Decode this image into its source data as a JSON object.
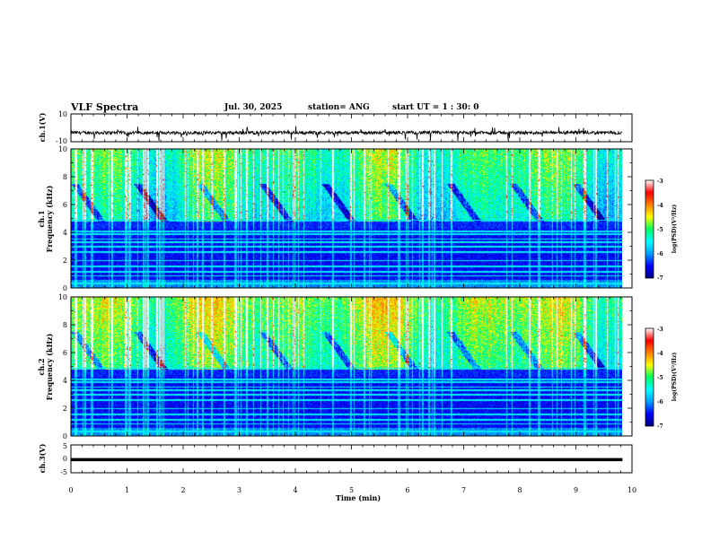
{
  "header": {
    "title": "VLF Spectra",
    "date": "Jul. 30, 2025",
    "station": "station= ANG",
    "start_ut": "start  UT =   1 : 30: 0"
  },
  "chart_data": [
    {
      "type": "line",
      "name": "ch.1(V) waveform",
      "ylabel": "ch.1(V)",
      "xlim": [
        0,
        10
      ],
      "ylim": [
        -10,
        10
      ],
      "yticks": [
        "10",
        "-10"
      ],
      "baseline": -3.5,
      "noise_amplitude": 1.2
    },
    {
      "type": "heatmap",
      "name": "ch.1 spectrogram",
      "ylabel_line1": "ch.1",
      "ylabel_line2": "Frequency (kHz)",
      "xlim": [
        0,
        10
      ],
      "ylim": [
        0,
        10
      ],
      "yticks": [
        "0",
        "2",
        "4",
        "6",
        "8",
        "10"
      ],
      "colorbar": {
        "label": "log(PSD)(V²/Hz)",
        "range": [
          -7,
          -3
        ],
        "ticks": [
          "-3",
          "-4",
          "-5",
          "-6",
          "-7"
        ]
      }
    },
    {
      "type": "heatmap",
      "name": "ch.2 spectrogram",
      "ylabel_line1": "ch.2",
      "ylabel_line2": "Frequency (kHz)",
      "xlim": [
        0,
        10
      ],
      "ylim": [
        0,
        10
      ],
      "yticks": [
        "0",
        "2",
        "4",
        "6",
        "8",
        "10"
      ],
      "colorbar": {
        "label": "log(PSD)(V²/Hz)",
        "range": [
          -7,
          -3
        ],
        "ticks": [
          "-3",
          "-4",
          "-5",
          "-6",
          "-7"
        ]
      }
    },
    {
      "type": "line",
      "name": "ch.3(V) trace",
      "ylabel": "ch.3(V)",
      "xlim": [
        0,
        10
      ],
      "ylim": [
        -5,
        5
      ],
      "yticks": [
        "5",
        "0",
        "-5"
      ],
      "constant_value": -0.3
    }
  ],
  "xaxis": {
    "label": "Time (min)",
    "ticks": [
      "0",
      "1",
      "2",
      "3",
      "4",
      "5",
      "6",
      "7",
      "8",
      "9",
      "10"
    ],
    "data_end_min": 9.83
  },
  "colors": {
    "scale": [
      "#000080",
      "#0000ff",
      "#00a0ff",
      "#00ffff",
      "#00ff60",
      "#ffff00",
      "#ff8000",
      "#ff0000",
      "#ffffff"
    ]
  }
}
